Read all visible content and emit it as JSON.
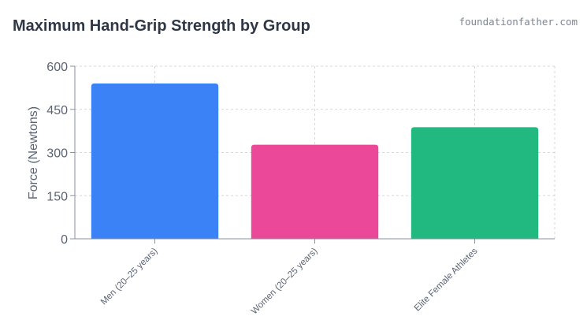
{
  "header": {
    "title": "Maximum Hand-Grip Strength by Group",
    "source": "foundationfather.com"
  },
  "chart_data": {
    "type": "bar",
    "title": "Maximum Hand-Grip Strength by Group",
    "xlabel": "",
    "ylabel": "Force (Newtons)",
    "categories": [
      "Men (20–25 years)",
      "Women (20–25 years)",
      "Elite Female Athletes"
    ],
    "values": [
      540,
      327,
      388
    ],
    "colors": [
      "#3b82f6",
      "#ec4899",
      "#22b981"
    ],
    "ylim": [
      0,
      600
    ],
    "yticks": [
      "0",
      "150",
      "300",
      "450",
      "600"
    ],
    "grid": true
  }
}
